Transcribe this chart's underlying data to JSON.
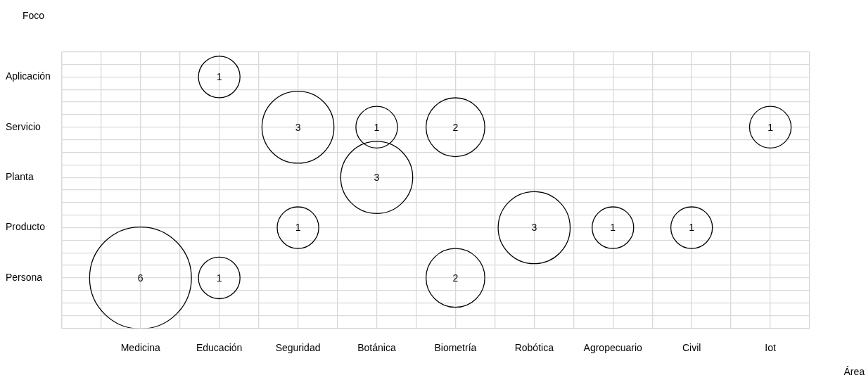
{
  "chart_data": {
    "type": "heatmap",
    "xlabel": "Área",
    "ylabel": "Foco",
    "grid": true,
    "data_labels": true,
    "categories": [
      "Medicina",
      "Educación",
      "Seguridad",
      "Botánica",
      "Biometría",
      "Robótica",
      "Agropecuario",
      "Civil",
      "Iot"
    ],
    "y_categories": [
      "Aplicación",
      "Servicio",
      "Planta",
      "Producto",
      "Persona"
    ],
    "cells": [
      [
        null,
        1,
        null,
        null,
        null,
        null,
        null,
        null,
        null
      ],
      [
        null,
        null,
        3,
        1,
        2,
        null,
        null,
        null,
        1
      ],
      [
        null,
        null,
        null,
        3,
        null,
        null,
        null,
        null,
        null
      ],
      [
        null,
        null,
        1,
        null,
        null,
        3,
        1,
        1,
        null
      ],
      [
        6,
        1,
        null,
        null,
        2,
        null,
        null,
        null,
        null
      ]
    ]
  }
}
